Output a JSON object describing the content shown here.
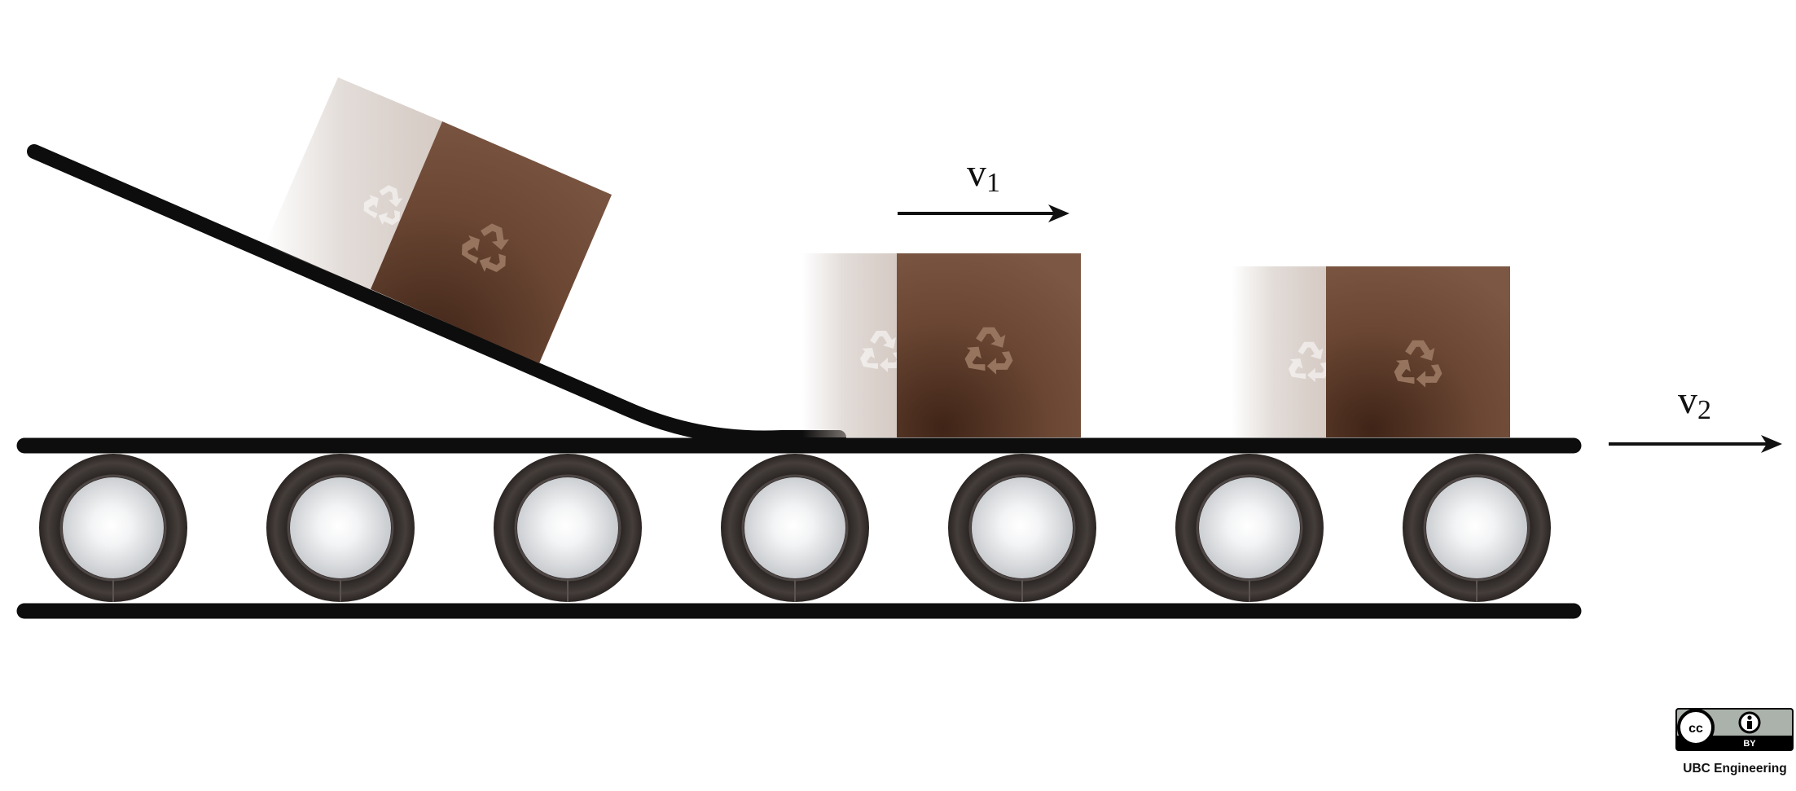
{
  "velocity_1": {
    "symbol": "v",
    "subscript": "1"
  },
  "velocity_2": {
    "symbol": "v",
    "subscript": "2"
  },
  "license": {
    "cc_mark": "cc",
    "by_mark": "BY"
  },
  "credit": "UBC Engineering",
  "colors": {
    "belt": "#0d0d0d",
    "box": "#6e4a35",
    "box_dark": "#47291a",
    "roller_outer": "#3b3533",
    "roller_inner": "#d7d9dc"
  },
  "roller_count": 7,
  "box_count": 3,
  "icons": [
    "recycle-icon",
    "cc-license-icon",
    "attribution-icon"
  ]
}
